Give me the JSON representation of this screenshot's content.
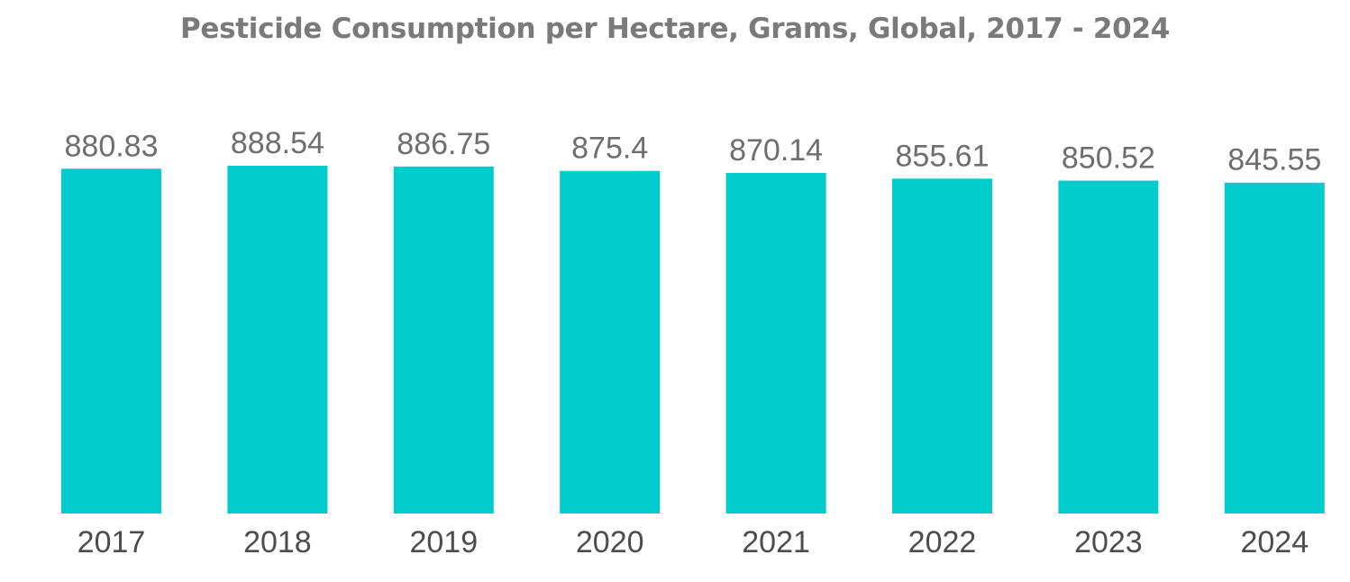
{
  "chart_data": {
    "type": "bar",
    "title": "Pesticide Consumption per Hectare, Grams, Global, 2017 - 2024",
    "xlabel": "",
    "ylabel": "",
    "categories": [
      "2017",
      "2018",
      "2019",
      "2020",
      "2021",
      "2022",
      "2023",
      "2024"
    ],
    "values": [
      880.83,
      888.54,
      886.75,
      875.4,
      870.14,
      855.61,
      850.52,
      845.55
    ],
    "value_labels": [
      "880.83",
      "888.54",
      "886.75",
      "875.4",
      "870.14",
      "855.61",
      "850.52",
      "845.55"
    ],
    "ylim": [
      0,
      888.54
    ],
    "grid": false,
    "legend": "none",
    "bar_color": "#00cccc"
  }
}
